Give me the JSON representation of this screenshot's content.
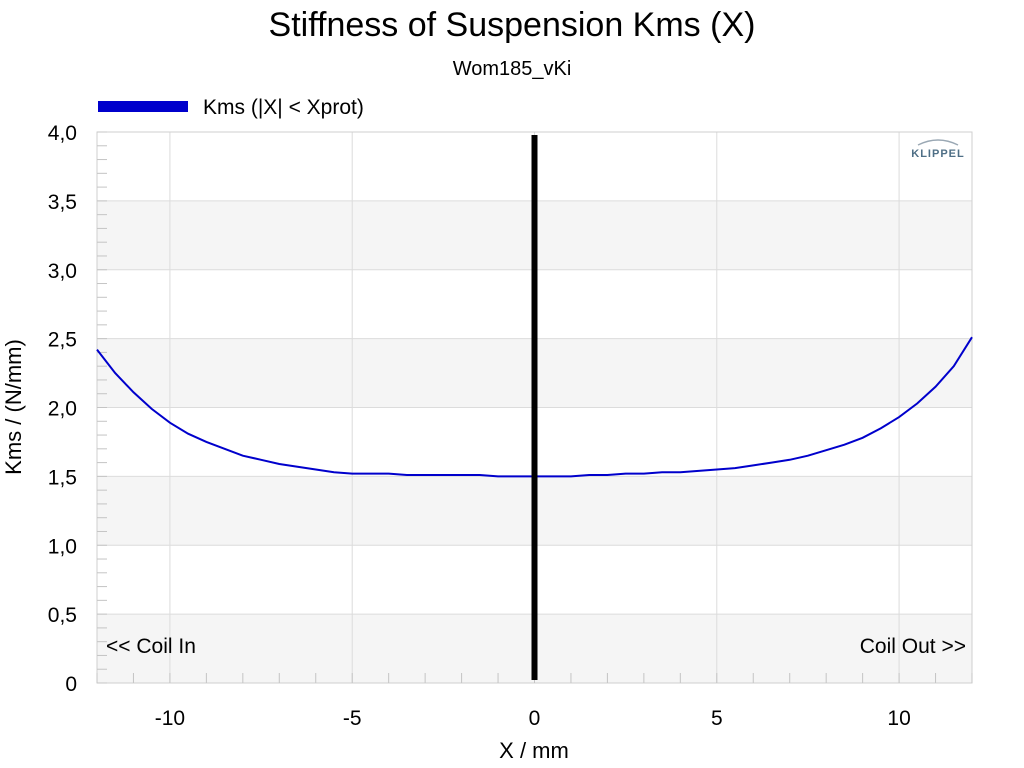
{
  "chart_data": {
    "type": "line",
    "title": "Stiffness of Suspension Kms (X)",
    "subtitle": "Wom185_vKi",
    "xlabel": "X / mm",
    "ylabel": "Kms / (N/mm)",
    "xlim": [
      -12,
      12
    ],
    "ylim": [
      0,
      4
    ],
    "x_ticks": [
      -10,
      -5,
      0,
      5,
      10
    ],
    "x_tick_labels": [
      "-10",
      "-5",
      "0",
      "5",
      "10"
    ],
    "y_ticks": [
      0,
      0.5,
      1,
      1.5,
      2,
      2.5,
      3,
      3.5,
      4
    ],
    "y_tick_labels": [
      "0",
      "0,5",
      "1,0",
      "1,5",
      "2,0",
      "2,5",
      "3,0",
      "3,5",
      "4,0"
    ],
    "grid": true,
    "legend_position": "top-left",
    "series": [
      {
        "name": "Kms (|X| < Xprot)",
        "color": "#0000cc",
        "x": [
          -12,
          -11.5,
          -11,
          -10.5,
          -10,
          -9.5,
          -9,
          -8.5,
          -8,
          -7.5,
          -7,
          -6.5,
          -6,
          -5.5,
          -5,
          -4.5,
          -4,
          -3.5,
          -3,
          -2.5,
          -2,
          -1.5,
          -1,
          -0.5,
          0,
          0.5,
          1,
          1.5,
          2,
          2.5,
          3,
          3.5,
          4,
          4.5,
          5,
          5.5,
          6,
          6.5,
          7,
          7.5,
          8,
          8.5,
          9,
          9.5,
          10,
          10.5,
          11,
          11.5,
          12
        ],
        "y": [
          2.42,
          2.25,
          2.11,
          1.99,
          1.89,
          1.81,
          1.75,
          1.7,
          1.65,
          1.62,
          1.59,
          1.57,
          1.55,
          1.53,
          1.52,
          1.52,
          1.52,
          1.51,
          1.51,
          1.51,
          1.51,
          1.51,
          1.5,
          1.5,
          1.5,
          1.5,
          1.5,
          1.51,
          1.51,
          1.52,
          1.52,
          1.53,
          1.53,
          1.54,
          1.55,
          1.56,
          1.58,
          1.6,
          1.62,
          1.65,
          1.69,
          1.73,
          1.78,
          1.85,
          1.93,
          2.03,
          2.15,
          2.3,
          2.51
        ]
      }
    ],
    "vertical_marker": {
      "x": 0,
      "color": "#000000"
    },
    "annotations": {
      "left": "<< Coil In",
      "right": "Coil Out >>"
    },
    "logo": "KLIPPEL"
  }
}
